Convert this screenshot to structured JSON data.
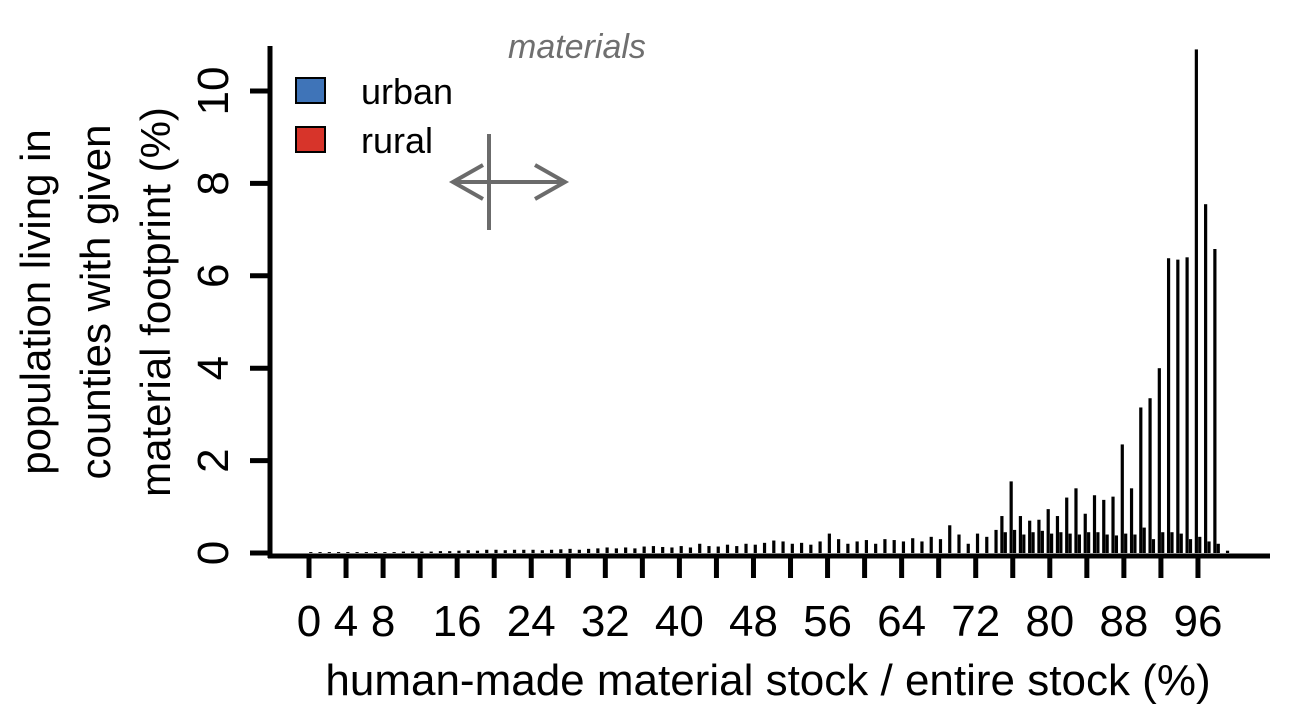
{
  "chart_data": {
    "type": "bar",
    "title": "",
    "xlabel": "human-made material stock / entire stock (%)",
    "ylabel_lines": [
      "population living in",
      "counties with given",
      "material footprint (%)"
    ],
    "xlim": [
      0,
      100
    ],
    "ylim": [
      0,
      11
    ],
    "yticks": [
      0,
      2,
      4,
      6,
      8,
      10
    ],
    "xticks": [
      0,
      4,
      8,
      16,
      24,
      32,
      40,
      48,
      56,
      64,
      72,
      80,
      88,
      96
    ],
    "grid": false,
    "legend_position": "top-left",
    "annotation_text": "materials",
    "x": [
      0,
      1,
      2,
      3,
      4,
      5,
      6,
      7,
      8,
      9,
      10,
      11,
      12,
      13,
      14,
      15,
      16,
      17,
      18,
      19,
      20,
      21,
      22,
      23,
      24,
      25,
      26,
      27,
      28,
      29,
      30,
      31,
      32,
      33,
      34,
      35,
      36,
      37,
      38,
      39,
      40,
      41,
      42,
      43,
      44,
      45,
      46,
      47,
      48,
      49,
      50,
      51,
      52,
      53,
      54,
      55,
      56,
      57,
      58,
      59,
      60,
      61,
      62,
      63,
      64,
      65,
      66,
      67,
      68,
      69,
      70,
      71,
      72,
      73,
      74,
      75,
      76,
      77,
      78,
      79,
      80,
      81,
      82,
      83,
      84,
      85,
      86,
      87,
      88,
      89,
      90,
      91,
      92,
      93,
      94,
      95,
      96,
      97,
      98,
      99
    ],
    "series": [
      {
        "name": "urban",
        "color": "#3f74b8",
        "values": [
          0,
          0,
          0,
          0,
          0,
          0,
          0,
          0,
          0,
          0,
          0,
          0,
          0,
          0,
          0,
          0,
          0,
          0,
          0,
          0,
          0,
          0,
          0,
          0,
          0,
          0,
          0,
          0,
          0,
          0,
          0,
          0,
          0,
          0,
          0,
          0,
          0,
          0,
          0,
          0,
          0,
          0,
          0,
          0,
          0,
          0,
          0,
          0,
          0,
          0,
          0,
          0,
          0,
          0,
          0,
          0,
          0,
          0,
          0,
          0,
          0,
          0,
          0,
          0,
          0,
          0,
          0,
          0,
          0,
          0,
          0,
          0,
          0,
          0,
          0,
          0.8,
          1.55,
          0.8,
          0.7,
          0.72,
          0.95,
          0.8,
          1.2,
          1.4,
          0.85,
          1.25,
          1.15,
          1.22,
          2.35,
          1.4,
          3.15,
          3.35,
          4.0,
          6.38,
          6.35,
          6.4,
          10.9,
          7.55,
          6.58,
          0
        ]
      },
      {
        "name": "rural",
        "color": "#d7342a",
        "values": [
          0.02,
          0.02,
          0.02,
          0.02,
          0.02,
          0.02,
          0.02,
          0.02,
          0.02,
          0.02,
          0.03,
          0.03,
          0.03,
          0.03,
          0.04,
          0.04,
          0.05,
          0.06,
          0.05,
          0.07,
          0.07,
          0.06,
          0.07,
          0.07,
          0.07,
          0.06,
          0.07,
          0.08,
          0.09,
          0.07,
          0.09,
          0.1,
          0.12,
          0.1,
          0.12,
          0.1,
          0.14,
          0.15,
          0.13,
          0.12,
          0.15,
          0.12,
          0.2,
          0.15,
          0.14,
          0.18,
          0.15,
          0.2,
          0.18,
          0.22,
          0.27,
          0.25,
          0.2,
          0.22,
          0.18,
          0.25,
          0.42,
          0.3,
          0.2,
          0.25,
          0.28,
          0.2,
          0.3,
          0.28,
          0.25,
          0.32,
          0.25,
          0.35,
          0.3,
          0.6,
          0.4,
          0.2,
          0.42,
          0.35,
          0.5,
          0.45,
          0.5,
          0.4,
          0.45,
          0.48,
          0.42,
          0.45,
          0.42,
          0.4,
          0.45,
          0.45,
          0.4,
          0.38,
          0.42,
          0.4,
          0.55,
          0.3,
          0.45,
          0.45,
          0.42,
          0.3,
          0.35,
          0.25,
          0.2,
          0.05
        ]
      }
    ]
  }
}
